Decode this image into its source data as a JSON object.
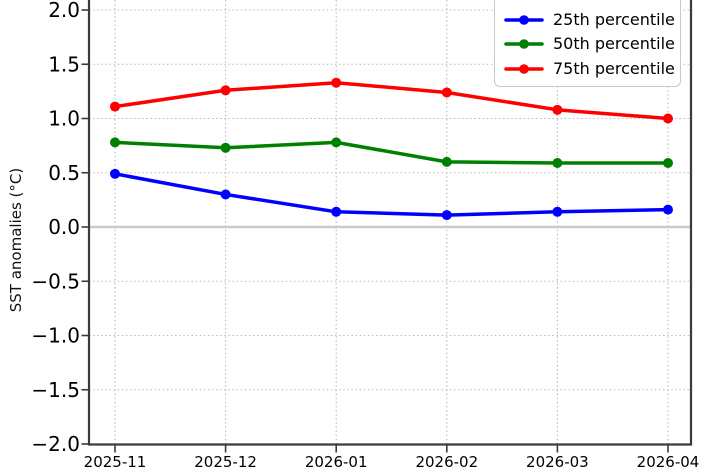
{
  "chart_data": {
    "type": "line",
    "title": "",
    "xlabel": "",
    "ylabel": "SST anomalies (°C)",
    "x": [
      "2025-11",
      "2025-12",
      "2026-01",
      "2026-02",
      "2026-03",
      "2026-04"
    ],
    "series": [
      {
        "name": "25th percentile",
        "color": "#0000ff",
        "values": [
          0.49,
          0.3,
          0.14,
          0.11,
          0.14,
          0.16
        ]
      },
      {
        "name": "50th percentile",
        "color": "#008000",
        "values": [
          0.78,
          0.73,
          0.78,
          0.6,
          0.59,
          0.59
        ]
      },
      {
        "name": "75th percentile",
        "color": "#ff0000",
        "values": [
          1.11,
          1.26,
          1.33,
          1.24,
          1.08,
          1.0
        ]
      }
    ],
    "ylim": [
      -2.0,
      2.1
    ],
    "yticks": [
      2.0,
      1.5,
      1.0,
      0.5,
      0.0,
      -0.5,
      -1.0,
      -1.5,
      -2.0
    ],
    "ytick_labels": [
      "2.0",
      "1.5",
      "1.0",
      "0.5",
      "0.0",
      "−0.5",
      "−1.0",
      "−1.5",
      "−2.0"
    ],
    "grid": "dotted",
    "zero_line": true,
    "legend_position": "upper right",
    "style": {
      "grid_color": "#b9b9b9",
      "zero_line_color": "#c9c9c9",
      "spine_color": "#3b3b3b",
      "tick_color": "#3b3b3b",
      "tick_label_color": "#000000",
      "line_color_25th": "#0000ff",
      "line_color_50th": "#008000",
      "line_color_75th": "#ff0000",
      "background": "#ffffff"
    }
  }
}
